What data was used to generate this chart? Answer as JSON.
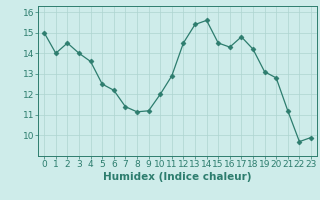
{
  "xlabel": "Humidex (Indice chaleur)",
  "x_values": [
    0,
    1,
    2,
    3,
    4,
    5,
    6,
    7,
    8,
    9,
    10,
    11,
    12,
    13,
    14,
    15,
    16,
    17,
    18,
    19,
    20,
    21,
    22,
    23
  ],
  "y_values": [
    15.0,
    14.0,
    14.5,
    14.0,
    13.6,
    12.5,
    12.2,
    11.4,
    11.15,
    11.2,
    12.0,
    12.9,
    14.5,
    15.4,
    15.6,
    14.5,
    14.3,
    14.8,
    14.2,
    13.1,
    12.8,
    11.2,
    9.7,
    9.9
  ],
  "line_color": "#2d7d6e",
  "marker": "D",
  "marker_size": 2.5,
  "background_color": "#ceecea",
  "grid_color": "#aed4d0",
  "tick_color": "#2d7d6e",
  "label_color": "#2d7d6e",
  "ylim": [
    9.0,
    16.3
  ],
  "yticks": [
    10,
    11,
    12,
    13,
    14,
    15,
    16
  ],
  "font_size": 6.5,
  "label_font_size": 7.5
}
